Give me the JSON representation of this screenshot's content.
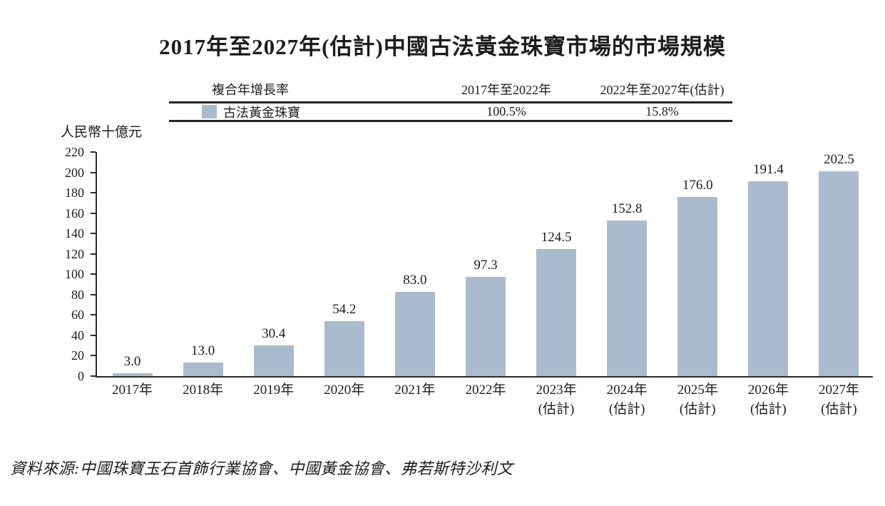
{
  "title": "2017年至2027年(估計)中國古法黃金珠寶市場的市場規模",
  "cagr_table": {
    "header": {
      "metric": "複合年增長率",
      "period1": "2017年至2022年",
      "period2": "2022年至2027年(估計)"
    },
    "row": {
      "series_label": "古法黃金珠寶",
      "value1": "100.5%",
      "value2": "15.8%"
    }
  },
  "source": "資料來源:中國珠寶玉石首飾行業協會、中國黃金協會、弗若斯特沙利文",
  "chart_data": {
    "type": "bar",
    "title": "2017年至2027年(估計)中國古法黃金珠寶市場的市場規模",
    "xlabel": "",
    "ylabel": "人民幣十億元",
    "categories": [
      "2017年",
      "2018年",
      "2019年",
      "2020年",
      "2021年",
      "2022年",
      "2023年",
      "2024年",
      "2025年",
      "2026年",
      "2027年"
    ],
    "category_notes": [
      "",
      "",
      "",
      "",
      "",
      "",
      "(估計)",
      "(估計)",
      "(估計)",
      "(估計)",
      "(估計)"
    ],
    "values": [
      3.0,
      13.0,
      30.4,
      54.2,
      83.0,
      97.3,
      124.5,
      152.8,
      176.0,
      191.4,
      202.5
    ],
    "value_labels": [
      "3.0",
      "13.0",
      "30.4",
      "54.2",
      "83.0",
      "97.3",
      "124.5",
      "152.8",
      "176.0",
      "191.4",
      "202.5"
    ],
    "ylim": [
      0,
      220
    ],
    "y_ticks": [
      0,
      20,
      40,
      60,
      80,
      100,
      120,
      140,
      160,
      180,
      200,
      220
    ],
    "bar_color": "#aabbcd",
    "axis_color": "#2b2b2b",
    "legend": [
      "古法黃金珠寶"
    ],
    "legend_position": "table-top",
    "grid": false
  }
}
